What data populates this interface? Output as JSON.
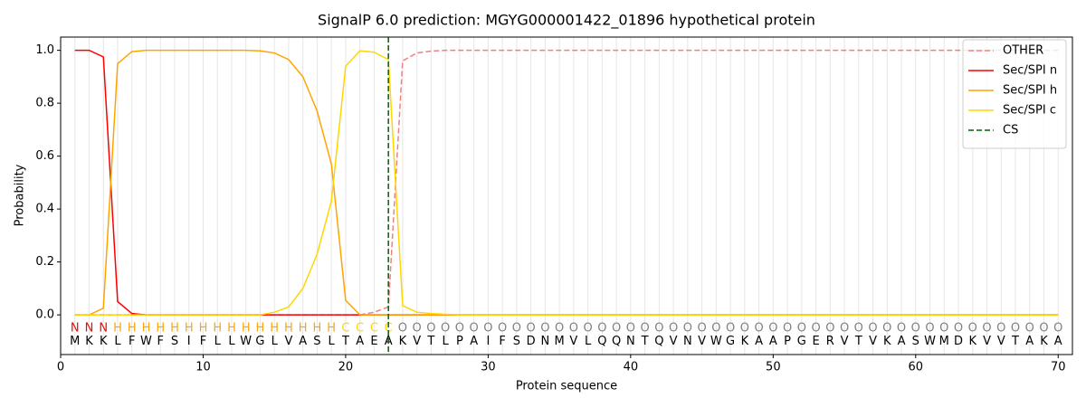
{
  "chart_data": {
    "type": "line",
    "title": "SignalP 6.0 prediction: MGYG000001422_01896 hypothetical protein",
    "xlabel": "Protein sequence",
    "ylabel": "Probability",
    "x": [
      1,
      2,
      3,
      4,
      5,
      6,
      7,
      8,
      9,
      10,
      11,
      12,
      13,
      14,
      15,
      16,
      17,
      18,
      19,
      20,
      21,
      22,
      23,
      24,
      25,
      26,
      27,
      28,
      29,
      30,
      31,
      32,
      33,
      34,
      35,
      36,
      37,
      38,
      39,
      40,
      41,
      42,
      43,
      44,
      45,
      46,
      47,
      48,
      49,
      50,
      51,
      52,
      53,
      54,
      55,
      56,
      57,
      58,
      59,
      60,
      61,
      62,
      63,
      64,
      65,
      66,
      67,
      68,
      69,
      70
    ],
    "residues": [
      "M",
      "K",
      "K",
      "L",
      "F",
      "W",
      "F",
      "S",
      "I",
      "F",
      "L",
      "L",
      "W",
      "G",
      "L",
      "V",
      "A",
      "S",
      "L",
      "T",
      "A",
      "E",
      "A",
      "K",
      "V",
      "T",
      "L",
      "P",
      "A",
      "I",
      "F",
      "S",
      "D",
      "N",
      "M",
      "V",
      "L",
      "Q",
      "Q",
      "N",
      "T",
      "Q",
      "V",
      "N",
      "V",
      "W",
      "G",
      "K",
      "A",
      "A",
      "P",
      "G",
      "E",
      "R",
      "V",
      "T",
      "V",
      "K",
      "A",
      "S",
      "W",
      "M",
      "D",
      "K",
      "V",
      "V",
      "T",
      "A",
      "K",
      "A"
    ],
    "labels": [
      "N",
      "N",
      "N",
      "H",
      "H",
      "H",
      "H",
      "H",
      "H",
      "H",
      "H",
      "H",
      "H",
      "H",
      "H",
      "H",
      "H",
      "H",
      "H",
      "C",
      "C",
      "C",
      "C",
      "O",
      "O",
      "O",
      "O",
      "O",
      "O",
      "O",
      "O",
      "O",
      "O",
      "O",
      "O",
      "O",
      "O",
      "O",
      "O",
      "O",
      "O",
      "O",
      "O",
      "O",
      "O",
      "O",
      "O",
      "O",
      "O",
      "O",
      "O",
      "O",
      "O",
      "O",
      "O",
      "O",
      "O",
      "O",
      "O",
      "O",
      "O",
      "O",
      "O",
      "O",
      "O",
      "O",
      "O",
      "O",
      "O",
      "O"
    ],
    "label_colors": {
      "N": "#ff0000",
      "H": "#ffa500",
      "C": "#ffd700",
      "O": "#808080"
    },
    "series": [
      {
        "name": "OTHER",
        "color": "#f08080",
        "dashed": true,
        "values": [
          0,
          0,
          0,
          0,
          0,
          0,
          0,
          0,
          0,
          0,
          0,
          0,
          0,
          0,
          0,
          0,
          0,
          0,
          0,
          0,
          0,
          0.01,
          0.03,
          0.96,
          0.99,
          0.997,
          1,
          1,
          1,
          1,
          1,
          1,
          1,
          1,
          1,
          1,
          1,
          1,
          1,
          1,
          1,
          1,
          1,
          1,
          1,
          1,
          1,
          1,
          1,
          1,
          1,
          1,
          1,
          1,
          1,
          1,
          1,
          1,
          1,
          1,
          1,
          1,
          1,
          1,
          1,
          1,
          1,
          1,
          1,
          1
        ]
      },
      {
        "name": "Sec/SPI n",
        "color": "#ff0000",
        "values": [
          1,
          1,
          0.975,
          0.05,
          0.005,
          0,
          0,
          0,
          0,
          0,
          0,
          0,
          0,
          0,
          0,
          0,
          0,
          0,
          0,
          0,
          0,
          0,
          0,
          0,
          0,
          0,
          0,
          0,
          0,
          0,
          0,
          0,
          0,
          0,
          0,
          0,
          0,
          0,
          0,
          0,
          0,
          0,
          0,
          0,
          0,
          0,
          0,
          0,
          0,
          0,
          0,
          0,
          0,
          0,
          0,
          0,
          0,
          0,
          0,
          0,
          0,
          0,
          0,
          0,
          0,
          0,
          0,
          0,
          0,
          0
        ]
      },
      {
        "name": "Sec/SPI h",
        "color": "#ffa500",
        "values": [
          0,
          0,
          0.025,
          0.95,
          0.995,
          1,
          1,
          1,
          1,
          1,
          1,
          1,
          1,
          0.998,
          0.99,
          0.965,
          0.9,
          0.77,
          0.57,
          0.055,
          0,
          0,
          0,
          0,
          0,
          0,
          0,
          0,
          0,
          0,
          0,
          0,
          0,
          0,
          0,
          0,
          0,
          0,
          0,
          0,
          0,
          0,
          0,
          0,
          0,
          0,
          0,
          0,
          0,
          0,
          0,
          0,
          0,
          0,
          0,
          0,
          0,
          0,
          0,
          0,
          0,
          0,
          0,
          0,
          0,
          0,
          0,
          0,
          0,
          0
        ]
      },
      {
        "name": "Sec/SPI c",
        "color": "#ffd700",
        "values": [
          0,
          0,
          0,
          0,
          0,
          0,
          0,
          0,
          0,
          0,
          0,
          0,
          0,
          0,
          0.01,
          0.03,
          0.1,
          0.23,
          0.43,
          0.94,
          0.998,
          0.993,
          0.965,
          0.035,
          0.01,
          0.005,
          0.002,
          0,
          0,
          0,
          0,
          0,
          0,
          0,
          0,
          0,
          0,
          0,
          0,
          0,
          0,
          0,
          0,
          0,
          0,
          0,
          0,
          0,
          0,
          0,
          0,
          0,
          0,
          0,
          0,
          0,
          0,
          0,
          0,
          0,
          0,
          0,
          0,
          0,
          0,
          0,
          0,
          0,
          0,
          0
        ]
      }
    ],
    "cs": {
      "name": "CS",
      "x": 23,
      "color": "#006400"
    },
    "xlim": [
      0,
      71
    ],
    "xticks": [
      0,
      10,
      20,
      30,
      40,
      50,
      60,
      70
    ],
    "ylim": [
      -0.15,
      1.05
    ],
    "yticks": [
      {
        "value": 0,
        "label": "0.0"
      },
      0.2,
      0.4,
      0.6,
      0.8,
      {
        "value": 1,
        "label": "1.0"
      }
    ],
    "legend": "upper right"
  }
}
